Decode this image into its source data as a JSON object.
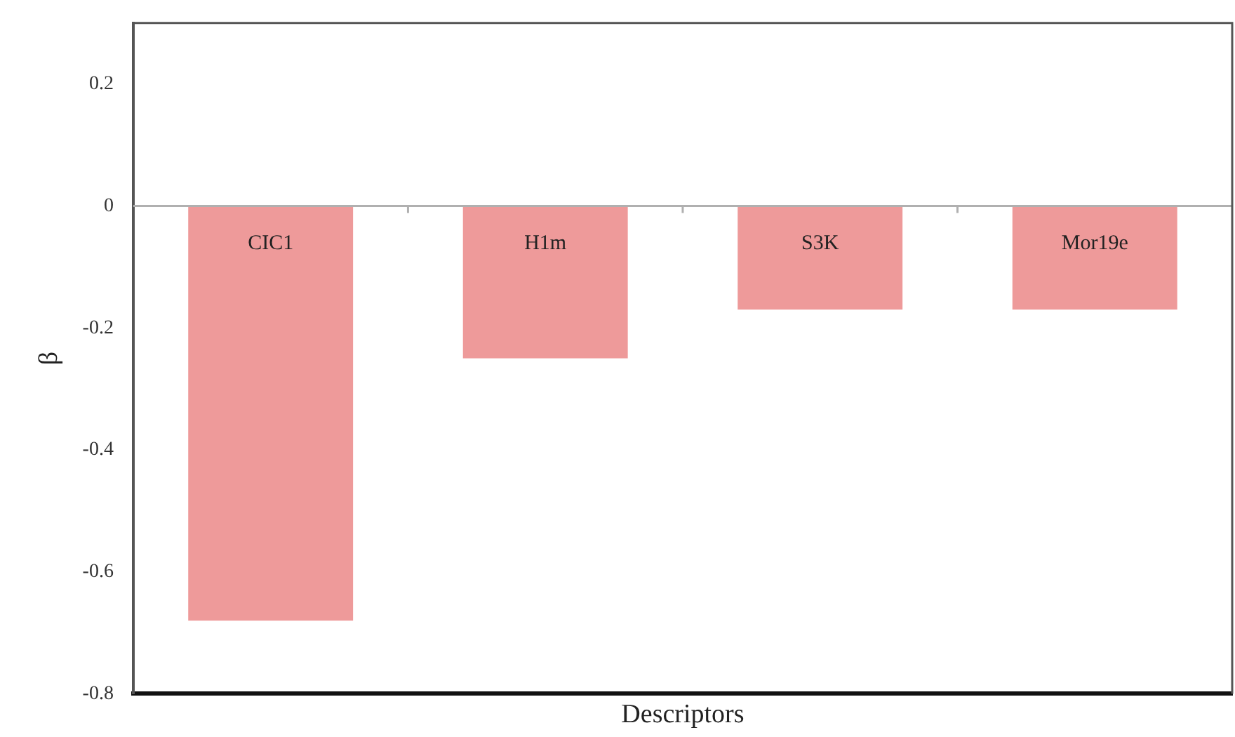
{
  "chart_data": {
    "type": "bar",
    "xlabel": "Descriptors",
    "ylabel": "β",
    "categories": [
      "CIC1",
      "H1m",
      "S3K",
      "Mor19e"
    ],
    "values": [
      -0.68,
      -0.25,
      -0.17,
      -0.17
    ],
    "color": "#ee9a9a",
    "ylim": [
      -0.8,
      0.3
    ],
    "yticks": [
      -0.8,
      -0.6,
      -0.4,
      -0.2,
      0,
      0.2
    ],
    "grid": false,
    "legend": false
  }
}
